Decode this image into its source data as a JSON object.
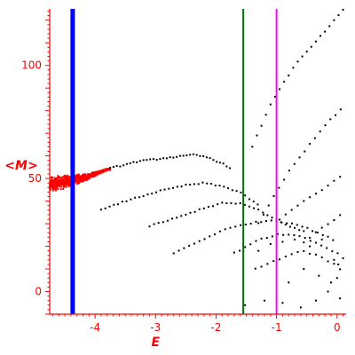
{
  "chart_data": {
    "type": "scatter",
    "xlabel": "E",
    "ylabel": "<M>",
    "xlim": [
      -4.75,
      0.15
    ],
    "ylim": [
      -10,
      125
    ],
    "x_ticks": [
      -4,
      -3,
      -2,
      -1,
      0
    ],
    "x_tick_labels": [
      "-4",
      "-3",
      "-2",
      "-1",
      "0"
    ],
    "y_ticks": [
      0,
      50,
      100
    ],
    "y_tick_labels": [
      "0",
      "50",
      "100"
    ],
    "grid": false,
    "colors": {
      "axis": "#ff0000",
      "dense_cluster": "#ff0000",
      "points": "#000000",
      "line_blue": "#0000ff",
      "line_green": "#007000",
      "line_magenta": "#ff00ff"
    },
    "vertical_lines": [
      {
        "x": -4.37,
        "color": "#0000ff",
        "width": "thick"
      },
      {
        "x": -1.55,
        "color": "#007000",
        "width": "normal"
      },
      {
        "x": -1.0,
        "color": "#ff00ff",
        "width": "normal"
      }
    ],
    "dense_cluster": {
      "x_range": [
        -4.75,
        -3.75
      ],
      "center_curve": [
        [
          -4.75,
          47.5
        ],
        [
          -4.5,
          48.5
        ],
        [
          -4.3,
          49.5
        ],
        [
          -4.1,
          51
        ],
        [
          -3.95,
          52.5
        ],
        [
          -3.8,
          54
        ]
      ],
      "spread": [
        [
          -4.75,
          3.5
        ],
        [
          -4.5,
          3.2
        ],
        [
          -4.3,
          2.3
        ],
        [
          -4.1,
          1.4
        ],
        [
          -3.95,
          0.8
        ],
        [
          -3.8,
          0.4
        ]
      ]
    },
    "series": [
      {
        "type": "curve",
        "color": "#000000",
        "x_range": [
          -3.75,
          -1.75
        ],
        "spacing": 0.055,
        "points": [
          [
            -3.75,
            54.5
          ],
          [
            -3.3,
            57.5
          ],
          [
            -2.8,
            59.2
          ],
          [
            -2.5,
            60
          ],
          [
            -2.35,
            60.5
          ],
          [
            -2.1,
            59
          ],
          [
            -1.85,
            56
          ],
          [
            -1.75,
            54.5
          ]
        ]
      },
      {
        "type": "curve",
        "color": "#000000",
        "x_range": [
          -3.9,
          -1.3
        ],
        "spacing": 0.07,
        "points": [
          [
            -3.9,
            36
          ],
          [
            -3.5,
            40
          ],
          [
            -3.0,
            44
          ],
          [
            -2.5,
            47
          ],
          [
            -2.2,
            48
          ],
          [
            -1.9,
            46.5
          ],
          [
            -1.6,
            44
          ],
          [
            -1.4,
            40
          ],
          [
            -1.3,
            38
          ]
        ]
      },
      {
        "type": "curve",
        "color": "#000000",
        "x_range": [
          -3.1,
          -0.5
        ],
        "spacing": 0.075,
        "points": [
          [
            -3.1,
            29
          ],
          [
            -2.6,
            33
          ],
          [
            -2.2,
            37
          ],
          [
            -1.9,
            39
          ],
          [
            -1.6,
            39
          ],
          [
            -1.3,
            36
          ],
          [
            -1.0,
            31.5
          ],
          [
            -0.7,
            28
          ],
          [
            -0.5,
            26
          ]
        ]
      },
      {
        "type": "curve",
        "color": "#000000",
        "x_range": [
          -2.7,
          0.0
        ],
        "spacing": 0.085,
        "points": [
          [
            -2.7,
            17
          ],
          [
            -2.3,
            22
          ],
          [
            -1.9,
            27
          ],
          [
            -1.5,
            30
          ],
          [
            -1.1,
            31.5
          ],
          [
            -0.7,
            30
          ],
          [
            -0.4,
            27
          ],
          [
            -0.15,
            24
          ],
          [
            0.0,
            22
          ]
        ]
      },
      {
        "type": "curve",
        "color": "#000000",
        "x_range": [
          -1.7,
          0.1
        ],
        "spacing": 0.09,
        "points": [
          [
            -1.7,
            17
          ],
          [
            -1.3,
            23
          ],
          [
            -0.95,
            25.5
          ],
          [
            -0.6,
            24.5
          ],
          [
            -0.3,
            21
          ],
          [
            0.0,
            17
          ],
          [
            0.1,
            15
          ]
        ]
      },
      {
        "type": "curve",
        "color": "#000000",
        "x_range": [
          -1.35,
          0.05
        ],
        "spacing": 0.1,
        "points": [
          [
            -1.35,
            10
          ],
          [
            -1.0,
            14
          ],
          [
            -0.6,
            18
          ],
          [
            -0.3,
            16
          ],
          [
            -0.05,
            12
          ],
          [
            0.05,
            10
          ]
        ]
      },
      {
        "type": "curve",
        "color": "#000000",
        "x_range": [
          -1.4,
          0.12
        ],
        "spacing": 0.075,
        "points": [
          [
            -1.4,
            64
          ],
          [
            -1.1,
            83
          ],
          [
            -0.7,
            100
          ],
          [
            -0.3,
            112
          ],
          [
            0.12,
            125
          ]
        ]
      },
      {
        "type": "curve",
        "color": "#000000",
        "x_range": [
          -1.3,
          0.12
        ],
        "spacing": 0.085,
        "points": [
          [
            -1.3,
            30
          ],
          [
            -1.05,
            42
          ],
          [
            -0.75,
            55
          ],
          [
            -0.45,
            65
          ],
          [
            -0.15,
            75
          ],
          [
            0.12,
            82
          ]
        ]
      },
      {
        "type": "curve",
        "color": "#000000",
        "x_range": [
          -0.95,
          0.12
        ],
        "spacing": 0.1,
        "points": [
          [
            -0.95,
            32
          ],
          [
            -0.6,
            39
          ],
          [
            -0.2,
            46
          ],
          [
            0.12,
            52
          ]
        ]
      },
      {
        "type": "curve",
        "color": "#000000",
        "x_range": [
          -0.55,
          0.12
        ],
        "spacing": 0.1,
        "points": [
          [
            -0.55,
            22
          ],
          [
            -0.25,
            28
          ],
          [
            0.12,
            35
          ]
        ]
      }
    ],
    "scattered_points": [
      [
        -1.52,
        -6
      ],
      [
        -1.3,
        18
      ],
      [
        -1.1,
        21
      ],
      [
        -0.9,
        22
      ],
      [
        -0.7,
        23
      ],
      [
        -0.45,
        20
      ],
      [
        -0.25,
        23
      ],
      [
        -0.8,
        4
      ],
      [
        -0.55,
        10
      ],
      [
        -0.3,
        7
      ],
      [
        -0.1,
        4
      ],
      [
        0.0,
        6
      ],
      [
        0.05,
        -3
      ],
      [
        -0.6,
        -7
      ],
      [
        -0.35,
        -4
      ],
      [
        -0.15,
        0
      ],
      [
        -0.9,
        -5
      ],
      [
        -1.2,
        -4
      ],
      [
        -0.05,
        14
      ],
      [
        0.02,
        12
      ]
    ]
  }
}
